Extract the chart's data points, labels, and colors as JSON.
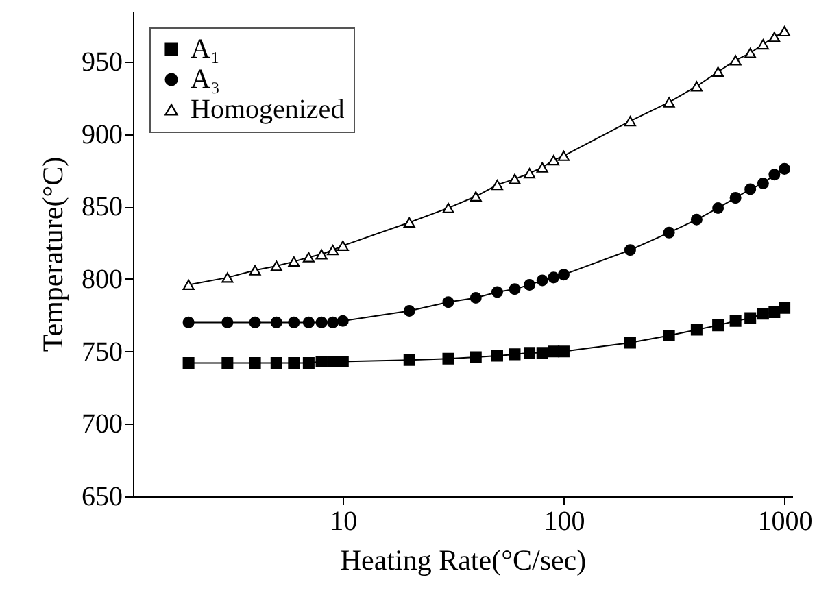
{
  "chart_data": {
    "type": "line",
    "xlabel": "Heating Rate(°C/sec)",
    "ylabel": "Temperature(°C)",
    "log": "x",
    "xlim": [
      1.12,
      1085
    ],
    "xticks": [
      10,
      100,
      1000
    ],
    "ylim": [
      650,
      985
    ],
    "yticks": [
      650,
      700,
      750,
      800,
      850,
      900,
      950
    ],
    "grid": false,
    "legend": "top left",
    "line_style": "solid",
    "x": [
      2,
      3,
      4,
      5,
      6,
      7,
      8,
      9,
      10,
      20,
      30,
      40,
      50,
      60,
      70,
      80,
      90,
      100,
      200,
      300,
      400,
      500,
      600,
      700,
      800,
      900,
      1000
    ],
    "series": [
      {
        "name": "A₁",
        "color": "#000000",
        "marker": "square",
        "values": [
          742,
          742,
          742,
          742,
          742,
          742,
          743,
          743,
          743,
          744,
          745,
          746,
          747,
          748,
          749,
          749,
          750,
          750,
          756,
          761,
          765,
          768,
          771,
          773,
          776,
          777,
          780
        ]
      },
      {
        "name": "A₃",
        "color": "#000000",
        "marker": "circle",
        "values": [
          770,
          770,
          770,
          770,
          770,
          770,
          770,
          770,
          771,
          778,
          784,
          787,
          791,
          793,
          796,
          799,
          801,
          803,
          820,
          832,
          841,
          849,
          856,
          862,
          866,
          872,
          876
        ]
      },
      {
        "name": "Homogenized",
        "color": "#000000",
        "marker": "triangle",
        "values": [
          796,
          801,
          806,
          809,
          812,
          815,
          817,
          820,
          823,
          839,
          849,
          857,
          865,
          869,
          873,
          877,
          882,
          885,
          909,
          922,
          933,
          943,
          951,
          956,
          962,
          967,
          971
        ]
      }
    ]
  }
}
